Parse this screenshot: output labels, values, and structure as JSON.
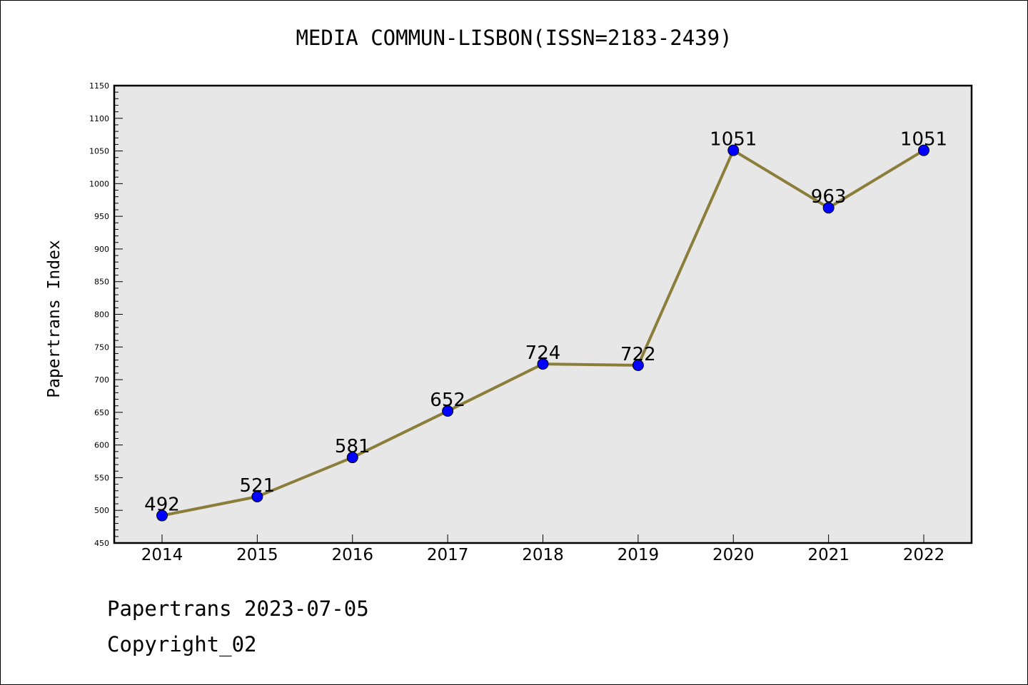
{
  "chart_data": {
    "type": "line",
    "title": "MEDIA COMMUN-LISBON(ISSN=2183-2439)",
    "xlabel": "",
    "ylabel": "Papertrans Index",
    "categories": [
      "2014",
      "2015",
      "2016",
      "2017",
      "2018",
      "2019",
      "2020",
      "2021",
      "2022"
    ],
    "series": [
      {
        "values": [
          492,
          521,
          581,
          652,
          724,
          722,
          1051,
          963,
          1051
        ],
        "line_color": "#8b7d3a",
        "marker_color": "#0000ff"
      }
    ],
    "data_labels": [
      "492",
      "521",
      "581",
      "652",
      "724",
      "722",
      "1051",
      "963",
      "1051"
    ],
    "ylim": [
      450,
      1150
    ],
    "y_ticks": [
      "450",
      "500",
      "550",
      "600",
      "650",
      "700",
      "750",
      "800",
      "850",
      "900",
      "950",
      "1000",
      "1050",
      "1100",
      "1150"
    ],
    "grid": false,
    "plot_background": "#e7e7e7"
  },
  "footer": {
    "date_line": "Papertrans 2023-07-05",
    "copyright_line": "Copyright_02"
  }
}
